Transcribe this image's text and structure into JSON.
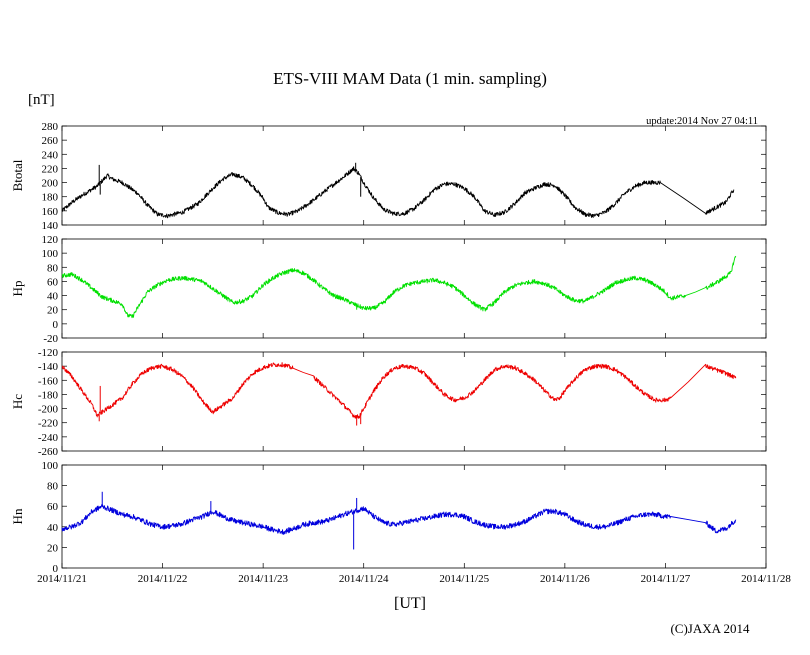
{
  "chart_data": {
    "type": "line",
    "title": "ETS-VIII MAM Data (1 min. sampling)",
    "unit_label": "[nT]",
    "update_text": "update:2014 Nov 27 04:11",
    "xlabel": "[UT]",
    "credit": "(C)JAXA 2014",
    "x_ticks": [
      "2014/11/21",
      "2014/11/22",
      "2014/11/23",
      "2014/11/24",
      "2014/11/25",
      "2014/11/26",
      "2014/11/27",
      "2014/11/28"
    ],
    "xlim": [
      0,
      7
    ],
    "x_units": "days after 2014/11/21 00:00 UT",
    "panels": [
      {
        "name": "Btotal",
        "color": "#000000",
        "ylim": [
          140,
          280
        ],
        "yticks": [
          140,
          160,
          180,
          200,
          220,
          240,
          260,
          280
        ],
        "yticklabels": [
          "140",
          "160",
          "180",
          "200",
          "220",
          "240",
          "260",
          "280"
        ],
        "noise": 3,
        "points": [
          [
            0.0,
            160
          ],
          [
            0.1,
            172
          ],
          [
            0.2,
            182
          ],
          [
            0.35,
            195
          ],
          [
            0.45,
            210
          ],
          [
            0.5,
            205
          ],
          [
            0.6,
            200
          ],
          [
            0.75,
            185
          ],
          [
            0.85,
            168
          ],
          [
            0.95,
            155
          ],
          [
            1.05,
            153
          ],
          [
            1.2,
            158
          ],
          [
            1.35,
            170
          ],
          [
            1.5,
            192
          ],
          [
            1.6,
            205
          ],
          [
            1.7,
            212
          ],
          [
            1.8,
            207
          ],
          [
            1.9,
            195
          ],
          [
            2.0,
            178
          ],
          [
            2.05,
            165
          ],
          [
            2.15,
            157
          ],
          [
            2.25,
            155
          ],
          [
            2.35,
            160
          ],
          [
            2.5,
            175
          ],
          [
            2.65,
            192
          ],
          [
            2.8,
            208
          ],
          [
            2.9,
            220
          ],
          [
            2.95,
            213
          ],
          [
            3.0,
            200
          ],
          [
            3.1,
            178
          ],
          [
            3.2,
            162
          ],
          [
            3.3,
            156
          ],
          [
            3.4,
            156
          ],
          [
            3.5,
            163
          ],
          [
            3.6,
            175
          ],
          [
            3.7,
            190
          ],
          [
            3.8,
            198
          ],
          [
            3.9,
            198
          ],
          [
            4.0,
            192
          ],
          [
            4.1,
            180
          ],
          [
            4.2,
            160
          ],
          [
            4.3,
            154
          ],
          [
            4.4,
            158
          ],
          [
            4.5,
            170
          ],
          [
            4.6,
            185
          ],
          [
            4.7,
            192
          ],
          [
            4.8,
            198
          ],
          [
            4.9,
            196
          ],
          [
            5.0,
            182
          ],
          [
            5.1,
            165
          ],
          [
            5.2,
            155
          ],
          [
            5.3,
            153
          ],
          [
            5.4,
            158
          ],
          [
            5.5,
            170
          ],
          [
            5.6,
            185
          ],
          [
            5.7,
            195
          ],
          [
            5.8,
            200
          ],
          [
            5.95,
            200
          ],
          [
            6.4,
            157
          ],
          [
            6.6,
            172
          ],
          [
            6.68,
            190
          ]
        ],
        "spikes": [
          [
            0.37,
            225
          ],
          [
            0.38,
            183
          ],
          [
            2.92,
            228
          ],
          [
            2.97,
            180
          ]
        ]
      },
      {
        "name": "Hp",
        "color": "#00e000",
        "ylim": [
          -20,
          120
        ],
        "yticks": [
          -20,
          0,
          20,
          40,
          60,
          80,
          100,
          120
        ],
        "yticklabels": [
          "-20",
          "0",
          "20",
          "40",
          "60",
          "80",
          "100",
          "120"
        ],
        "noise": 3,
        "points": [
          [
            0.0,
            68
          ],
          [
            0.1,
            70
          ],
          [
            0.2,
            62
          ],
          [
            0.3,
            50
          ],
          [
            0.4,
            38
          ],
          [
            0.5,
            33
          ],
          [
            0.6,
            28
          ],
          [
            0.65,
            12
          ],
          [
            0.7,
            10
          ],
          [
            0.75,
            22
          ],
          [
            0.85,
            45
          ],
          [
            0.95,
            55
          ],
          [
            1.05,
            62
          ],
          [
            1.2,
            65
          ],
          [
            1.3,
            63
          ],
          [
            1.4,
            60
          ],
          [
            1.5,
            50
          ],
          [
            1.6,
            40
          ],
          [
            1.7,
            30
          ],
          [
            1.8,
            32
          ],
          [
            1.9,
            40
          ],
          [
            2.0,
            55
          ],
          [
            2.1,
            65
          ],
          [
            2.2,
            72
          ],
          [
            2.3,
            76
          ],
          [
            2.4,
            72
          ],
          [
            2.5,
            62
          ],
          [
            2.6,
            50
          ],
          [
            2.7,
            40
          ],
          [
            2.8,
            35
          ],
          [
            2.9,
            28
          ],
          [
            3.0,
            22
          ],
          [
            3.1,
            22
          ],
          [
            3.2,
            30
          ],
          [
            3.3,
            45
          ],
          [
            3.4,
            54
          ],
          [
            3.5,
            58
          ],
          [
            3.6,
            60
          ],
          [
            3.7,
            62
          ],
          [
            3.8,
            58
          ],
          [
            3.9,
            52
          ],
          [
            4.0,
            40
          ],
          [
            4.1,
            28
          ],
          [
            4.2,
            20
          ],
          [
            4.3,
            30
          ],
          [
            4.4,
            45
          ],
          [
            4.5,
            54
          ],
          [
            4.6,
            58
          ],
          [
            4.7,
            60
          ],
          [
            4.8,
            57
          ],
          [
            4.9,
            50
          ],
          [
            5.0,
            40
          ],
          [
            5.1,
            33
          ],
          [
            5.2,
            32
          ],
          [
            5.3,
            40
          ],
          [
            5.4,
            48
          ],
          [
            5.5,
            58
          ],
          [
            5.6,
            62
          ],
          [
            5.7,
            65
          ],
          [
            5.8,
            62
          ],
          [
            5.9,
            55
          ],
          [
            6.0,
            45
          ],
          [
            6.05,
            36
          ],
          [
            6.2,
            40
          ],
          [
            6.4,
            50
          ],
          [
            6.55,
            62
          ],
          [
            6.65,
            72
          ],
          [
            6.68,
            88
          ],
          [
            6.7,
            96
          ]
        ],
        "spikes": [
          [
            0.35,
            46
          ],
          [
            2.93,
            20
          ]
        ]
      },
      {
        "name": "Hc",
        "color": "#ee0000",
        "ylim": [
          -260,
          -120
        ],
        "yticks": [
          -260,
          -240,
          -220,
          -200,
          -180,
          -160,
          -140,
          -120
        ],
        "yticklabels": [
          "-260",
          "-240",
          "-220",
          "-200",
          "-180",
          "-160",
          "-140",
          "-120"
        ],
        "noise": 3,
        "points": [
          [
            0.0,
            -140
          ],
          [
            0.1,
            -155
          ],
          [
            0.2,
            -175
          ],
          [
            0.3,
            -195
          ],
          [
            0.35,
            -210
          ],
          [
            0.4,
            -205
          ],
          [
            0.5,
            -195
          ],
          [
            0.6,
            -185
          ],
          [
            0.7,
            -165
          ],
          [
            0.8,
            -150
          ],
          [
            0.9,
            -142
          ],
          [
            1.0,
            -140
          ],
          [
            1.1,
            -145
          ],
          [
            1.2,
            -155
          ],
          [
            1.3,
            -170
          ],
          [
            1.4,
            -190
          ],
          [
            1.5,
            -205
          ],
          [
            1.6,
            -195
          ],
          [
            1.7,
            -185
          ],
          [
            1.8,
            -165
          ],
          [
            1.9,
            -150
          ],
          [
            2.0,
            -142
          ],
          [
            2.1,
            -138
          ],
          [
            2.2,
            -138
          ],
          [
            2.3,
            -143
          ],
          [
            2.5,
            -155
          ],
          [
            2.65,
            -175
          ],
          [
            2.8,
            -195
          ],
          [
            2.9,
            -210
          ],
          [
            2.95,
            -212
          ],
          [
            3.0,
            -200
          ],
          [
            3.1,
            -175
          ],
          [
            3.2,
            -155
          ],
          [
            3.3,
            -143
          ],
          [
            3.4,
            -140
          ],
          [
            3.5,
            -142
          ],
          [
            3.6,
            -150
          ],
          [
            3.7,
            -165
          ],
          [
            3.8,
            -180
          ],
          [
            3.9,
            -188
          ],
          [
            4.0,
            -185
          ],
          [
            4.1,
            -175
          ],
          [
            4.2,
            -160
          ],
          [
            4.3,
            -145
          ],
          [
            4.4,
            -140
          ],
          [
            4.5,
            -142
          ],
          [
            4.6,
            -150
          ],
          [
            4.7,
            -160
          ],
          [
            4.8,
            -175
          ],
          [
            4.9,
            -188
          ],
          [
            4.95,
            -185
          ],
          [
            5.0,
            -175
          ],
          [
            5.1,
            -158
          ],
          [
            5.2,
            -145
          ],
          [
            5.3,
            -140
          ],
          [
            5.4,
            -140
          ],
          [
            5.5,
            -145
          ],
          [
            5.6,
            -155
          ],
          [
            5.7,
            -168
          ],
          [
            5.8,
            -180
          ],
          [
            5.9,
            -188
          ],
          [
            6.0,
            -188
          ],
          [
            6.05,
            -185
          ],
          [
            6.4,
            -140
          ],
          [
            6.6,
            -150
          ],
          [
            6.7,
            -157
          ]
        ],
        "spikes": [
          [
            0.38,
            -168
          ],
          [
            0.37,
            -218
          ],
          [
            2.93,
            -224
          ],
          [
            2.97,
            -222
          ]
        ]
      },
      {
        "name": "Hn",
        "color": "#0000dd",
        "ylim": [
          0,
          100
        ],
        "yticks": [
          0,
          20,
          40,
          60,
          80,
          100
        ],
        "yticklabels": [
          "0",
          "20",
          "40",
          "60",
          "80",
          "100"
        ],
        "noise": 2.5,
        "points": [
          [
            0.0,
            38
          ],
          [
            0.1,
            40
          ],
          [
            0.2,
            45
          ],
          [
            0.3,
            55
          ],
          [
            0.4,
            60
          ],
          [
            0.5,
            56
          ],
          [
            0.6,
            52
          ],
          [
            0.7,
            50
          ],
          [
            0.8,
            46
          ],
          [
            0.9,
            42
          ],
          [
            1.0,
            40
          ],
          [
            1.1,
            41
          ],
          [
            1.2,
            43
          ],
          [
            1.3,
            47
          ],
          [
            1.4,
            50
          ],
          [
            1.5,
            55
          ],
          [
            1.6,
            50
          ],
          [
            1.7,
            46
          ],
          [
            1.8,
            44
          ],
          [
            2.0,
            40
          ],
          [
            2.1,
            37
          ],
          [
            2.2,
            35
          ],
          [
            2.3,
            38
          ],
          [
            2.4,
            42
          ],
          [
            2.5,
            44
          ],
          [
            2.6,
            45
          ],
          [
            2.7,
            48
          ],
          [
            2.8,
            52
          ],
          [
            2.9,
            55
          ],
          [
            3.0,
            58
          ],
          [
            3.1,
            50
          ],
          [
            3.2,
            44
          ],
          [
            3.3,
            42
          ],
          [
            3.4,
            44
          ],
          [
            3.5,
            46
          ],
          [
            3.6,
            48
          ],
          [
            3.7,
            50
          ],
          [
            3.8,
            52
          ],
          [
            3.9,
            52
          ],
          [
            4.0,
            50
          ],
          [
            4.1,
            45
          ],
          [
            4.2,
            42
          ],
          [
            4.3,
            40
          ],
          [
            4.4,
            40
          ],
          [
            4.5,
            42
          ],
          [
            4.6,
            45
          ],
          [
            4.7,
            50
          ],
          [
            4.8,
            55
          ],
          [
            4.9,
            55
          ],
          [
            5.0,
            52
          ],
          [
            5.1,
            46
          ],
          [
            5.2,
            42
          ],
          [
            5.3,
            40
          ],
          [
            5.4,
            40
          ],
          [
            5.5,
            43
          ],
          [
            5.6,
            47
          ],
          [
            5.7,
            50
          ],
          [
            5.8,
            52
          ],
          [
            5.9,
            52
          ],
          [
            6.0,
            50
          ],
          [
            6.05,
            50
          ],
          [
            6.4,
            44
          ],
          [
            6.5,
            36
          ],
          [
            6.6,
            38
          ],
          [
            6.7,
            47
          ]
        ],
        "spikes": [
          [
            0.4,
            74
          ],
          [
            2.9,
            18
          ],
          [
            2.93,
            68
          ],
          [
            1.48,
            65
          ]
        ]
      }
    ]
  }
}
